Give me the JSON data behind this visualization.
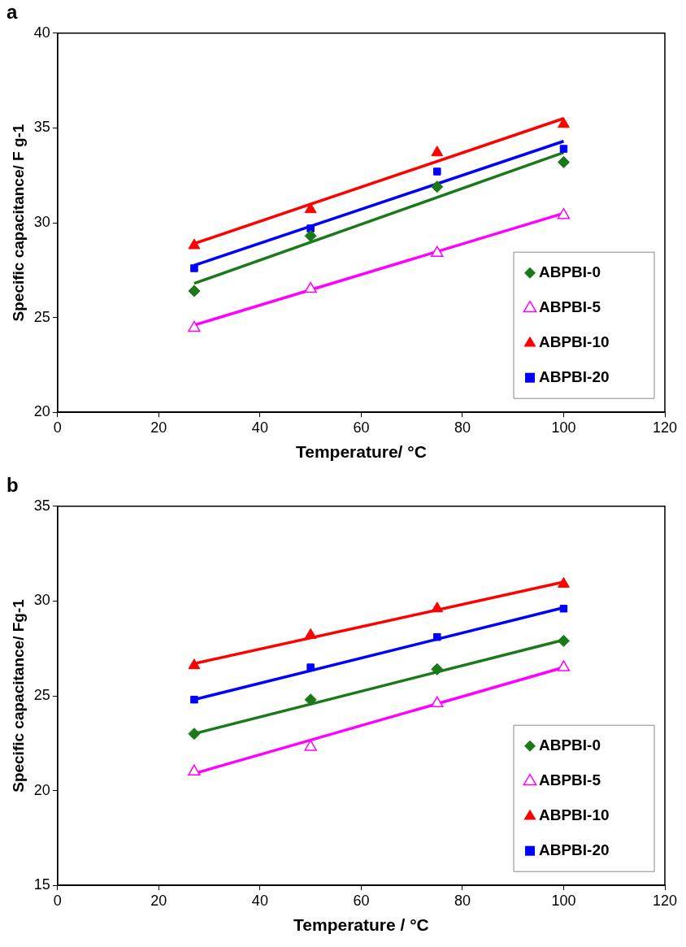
{
  "chart_data": [
    {
      "type": "scatter",
      "title": "a",
      "xlabel": "Temperature/ °C",
      "ylabel": "Specific capacitance/ F g-1",
      "x": [
        27,
        50,
        75,
        100
      ],
      "xlim": [
        0,
        120
      ],
      "xticks": [
        0,
        20,
        40,
        60,
        80,
        100,
        120
      ],
      "ylim": [
        20,
        40
      ],
      "yticks": [
        20,
        25,
        30,
        35,
        40
      ],
      "grid": false,
      "legend": "bottom right",
      "series": [
        {
          "name": "ABPBI-0",
          "color": "#1a7a1a",
          "marker": "diamond",
          "values": [
            26.4,
            29.3,
            31.9,
            33.2
          ]
        },
        {
          "name": "ABPBI-5",
          "color": "#ff00ff",
          "marker": "triangle-open",
          "values": [
            24.45,
            26.5,
            28.4,
            30.4
          ]
        },
        {
          "name": "ABPBI-10",
          "color": "#ff0000",
          "marker": "triangle",
          "values": [
            28.8,
            30.7,
            33.7,
            35.2
          ]
        },
        {
          "name": "ABPBI-20",
          "color": "#0000ff",
          "marker": "square",
          "values": [
            27.6,
            29.7,
            32.7,
            33.9
          ]
        },
        {
          "type": "line",
          "color": "#1a7a1a",
          "marker": "none",
          "values": [
            26.8,
            null,
            null,
            33.7
          ]
        },
        {
          "type": "line",
          "color": "#ff00ff",
          "marker": "none",
          "values": [
            24.6,
            null,
            null,
            30.5
          ]
        },
        {
          "type": "line",
          "color": "#ff0000",
          "marker": "none",
          "values": [
            28.9,
            null,
            null,
            35.5
          ]
        },
        {
          "type": "line",
          "color": "#0000ff",
          "marker": "none",
          "values": [
            27.75,
            null,
            null,
            34.3
          ]
        }
      ]
    },
    {
      "type": "scatter",
      "title": "b",
      "xlabel": "Temperature / °C",
      "ylabel": "Specific capacitance/ Fg-1",
      "x": [
        27,
        50,
        75,
        100
      ],
      "xlim": [
        0,
        120
      ],
      "xticks": [
        0,
        20,
        40,
        60,
        80,
        100,
        120
      ],
      "ylim": [
        15,
        35
      ],
      "yticks": [
        15,
        20,
        25,
        30,
        35
      ],
      "grid": false,
      "legend": "bottom right",
      "series": [
        {
          "name": "ABPBI-0",
          "color": "#1a7a1a",
          "marker": "diamond",
          "values": [
            23.0,
            24.8,
            26.4,
            27.9
          ]
        },
        {
          "name": "ABPBI-5",
          "color": "#ff00ff",
          "marker": "triangle-open",
          "values": [
            21.0,
            22.3,
            24.6,
            26.5
          ]
        },
        {
          "name": "ABPBI-10",
          "color": "#ff0000",
          "marker": "triangle",
          "values": [
            26.6,
            28.2,
            29.6,
            30.9
          ]
        },
        {
          "name": "ABPBI-20",
          "color": "#0000ff",
          "marker": "square",
          "values": [
            24.8,
            26.5,
            28.1,
            29.6
          ]
        },
        {
          "type": "line",
          "color": "#1a7a1a",
          "marker": "none",
          "values": [
            23.0,
            null,
            null,
            27.95
          ]
        },
        {
          "type": "line",
          "color": "#ff00ff",
          "marker": "none",
          "values": [
            20.9,
            null,
            null,
            26.5
          ]
        },
        {
          "type": "line",
          "color": "#ff0000",
          "marker": "none",
          "values": [
            26.7,
            null,
            null,
            31.0
          ]
        },
        {
          "type": "line",
          "color": "#0000ff",
          "marker": "none",
          "values": [
            24.8,
            null,
            null,
            29.65
          ]
        }
      ]
    }
  ]
}
